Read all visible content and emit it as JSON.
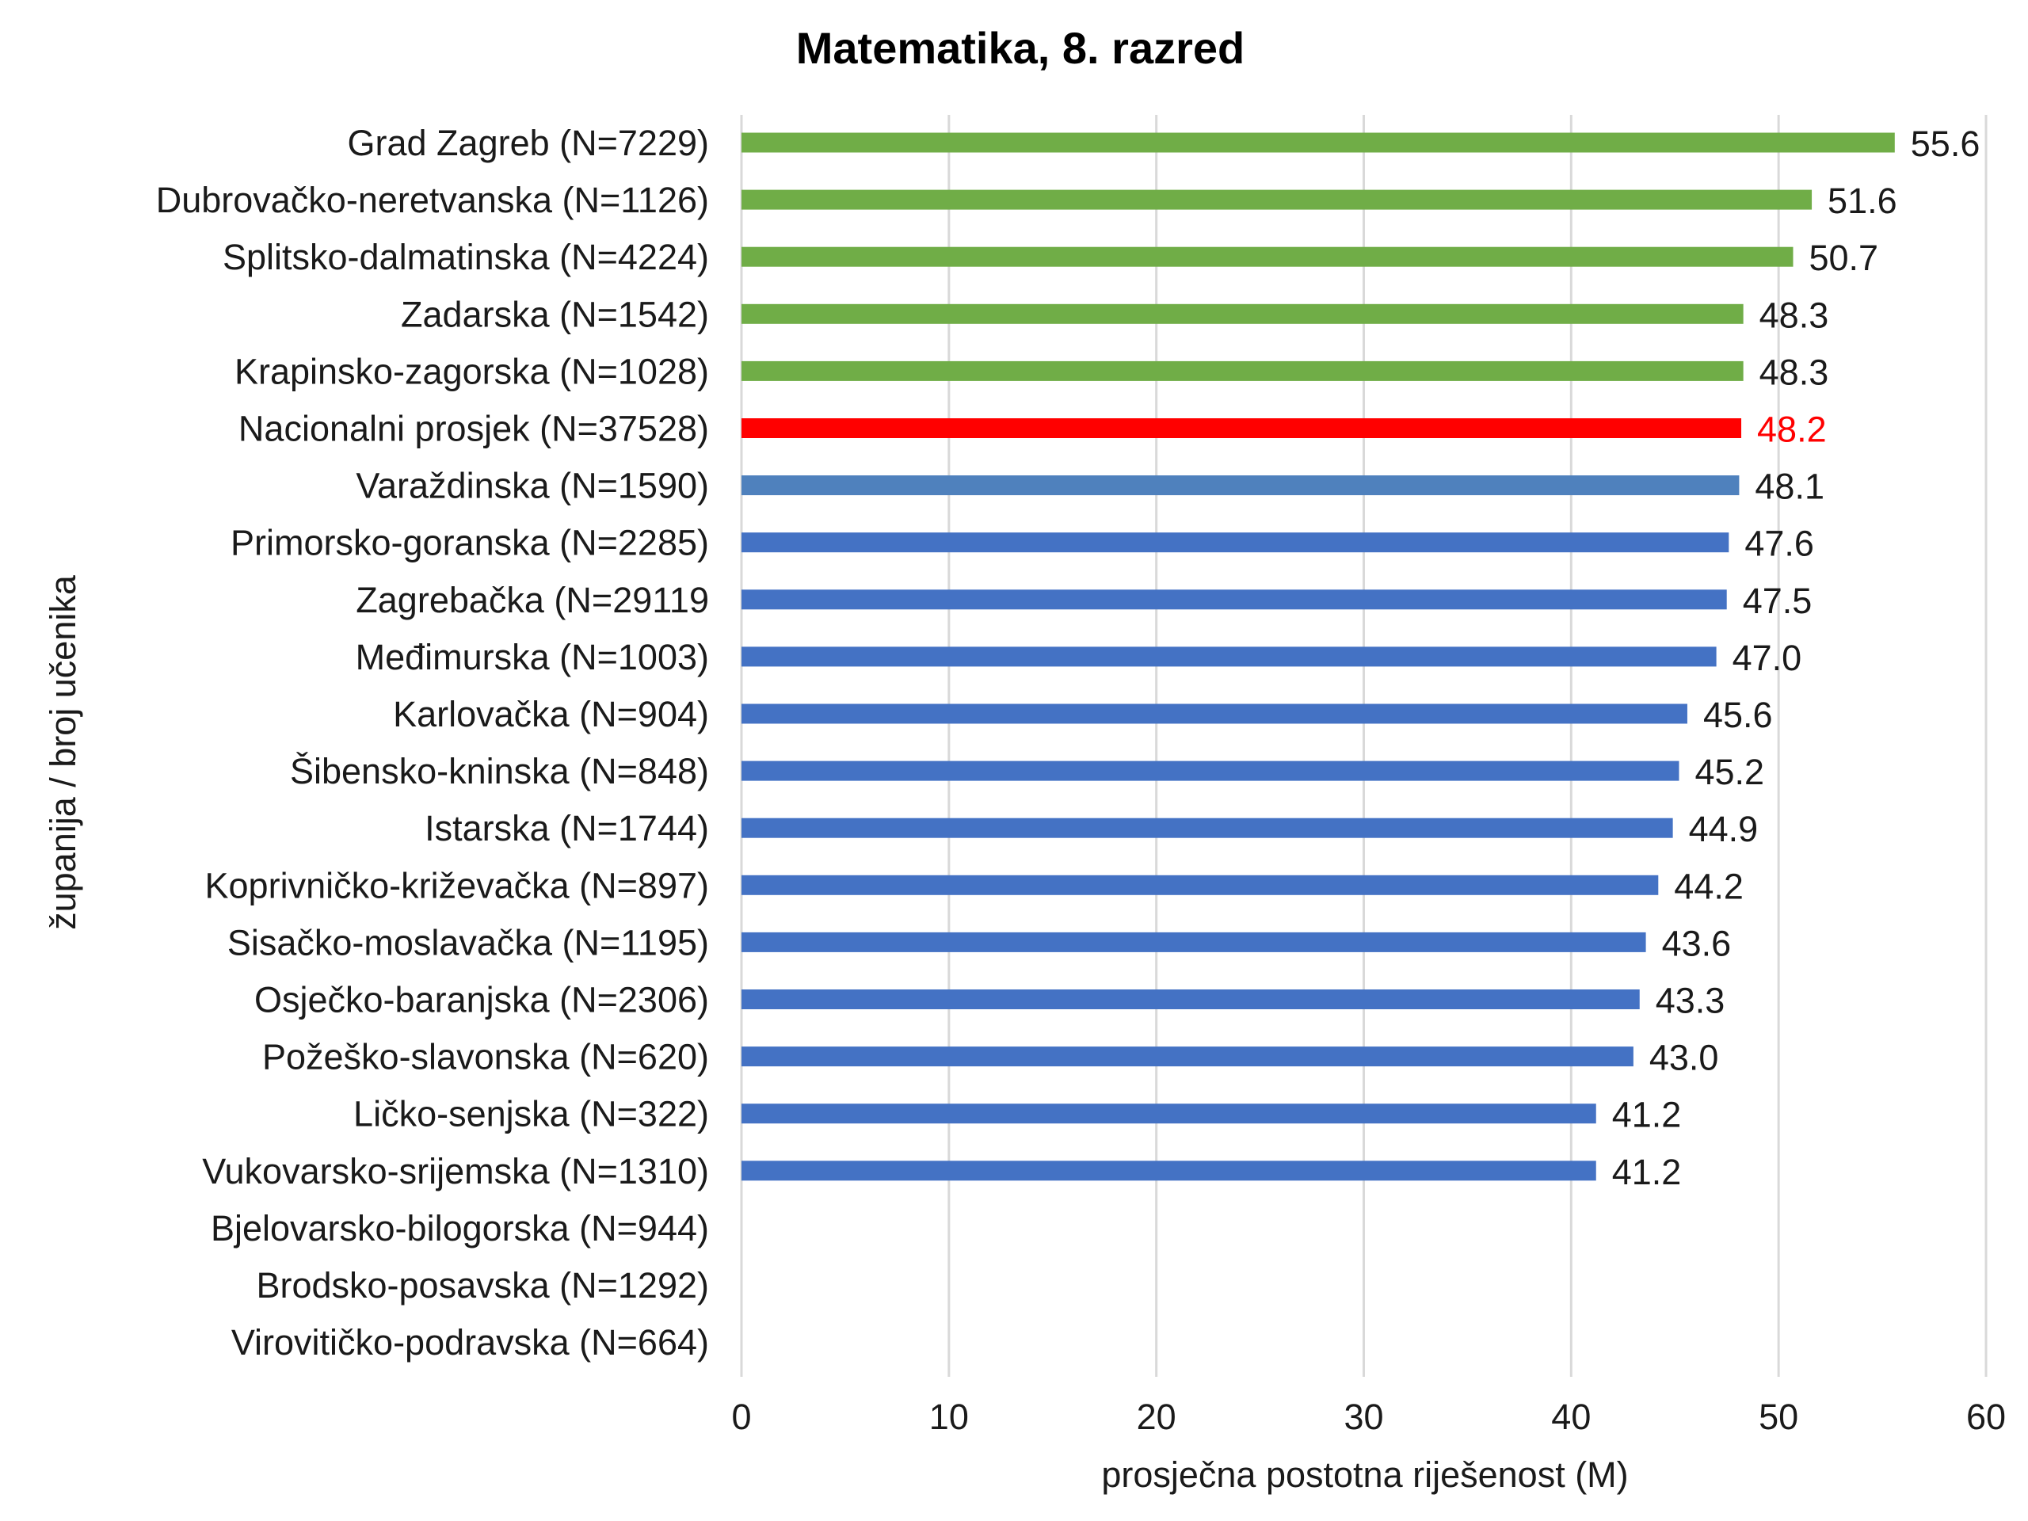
{
  "chart_data": {
    "type": "bar",
    "orientation": "horizontal",
    "title": "Matematika, 8. razred",
    "xlabel": "prosječna postotna riješenost (M)",
    "ylabel": "županija / broj učenika",
    "xlim": [
      0,
      60
    ],
    "xticks": [
      "0",
      "10",
      "20",
      "30",
      "40",
      "50",
      "60"
    ],
    "grid": "vertical",
    "legend": "none",
    "categories": [
      "Grad Zagreb (N=7229)",
      "Dubrovačko-neretvanska (N=1126)",
      "Splitsko-dalmatinska (N=4224)",
      "Zadarska (N=1542)",
      "Krapinsko-zagorska (N=1028)",
      "Nacionalni prosjek (N=37528)",
      "Varaždinska (N=1590)",
      "Primorsko-goranska (N=2285)",
      "Zagrebačka (N=29119",
      "Međimurska (N=1003)",
      "Karlovačka (N=904)",
      "Šibensko-kninska (N=848)",
      "Istarska (N=1744)",
      "Koprivničko-križevačka (N=897)",
      "Sisačko-moslavačka (N=1195)",
      "Osječko-baranjska (N=2306)",
      "Požeško-slavonska (N=620)",
      "Ličko-senjska (N=322)",
      "Vukovarsko-srijemska (N=1310)",
      "Bjelovarsko-bilogorska (N=944)",
      "Brodsko-posavska (N=1292)",
      "Virovitičko-podravska (N=664)"
    ],
    "values": [
      55.6,
      51.6,
      50.7,
      48.3,
      48.3,
      48.2,
      48.1,
      47.6,
      47.5,
      47.0,
      45.6,
      45.2,
      44.9,
      44.2,
      43.6,
      43.3,
      43.0,
      41.2,
      41.2,
      null,
      null,
      null
    ],
    "value_labels": [
      "55.6",
      "51.6",
      "50.7",
      "48.3",
      "48.3",
      "48.2",
      "48.1",
      "47.6",
      "47.5",
      "47.0",
      "45.6",
      "45.2",
      "44.9",
      "44.2",
      "43.6",
      "43.3",
      "43.0",
      "41.2",
      "41.2",
      "",
      "",
      ""
    ],
    "colors": [
      "#70AD47",
      "#70AD47",
      "#70AD47",
      "#70AD47",
      "#70AD47",
      "#FF0000",
      "#4F81BD",
      "#4472C4",
      "#4472C4",
      "#4472C4",
      "#4472C4",
      "#4472C4",
      "#4472C4",
      "#4472C4",
      "#4472C4",
      "#4472C4",
      "#4472C4",
      "#4472C4",
      "#4472C4",
      "#4472C4",
      "#4472C4",
      "#4472C4"
    ],
    "label_colors": [
      "#1a1a1a",
      "#1a1a1a",
      "#1a1a1a",
      "#1a1a1a",
      "#1a1a1a",
      "#FF0000",
      "#1a1a1a",
      "#1a1a1a",
      "#1a1a1a",
      "#1a1a1a",
      "#1a1a1a",
      "#1a1a1a",
      "#1a1a1a",
      "#1a1a1a",
      "#1a1a1a",
      "#1a1a1a",
      "#1a1a1a",
      "#1a1a1a",
      "#1a1a1a",
      "#1a1a1a",
      "#1a1a1a",
      "#1a1a1a"
    ]
  }
}
